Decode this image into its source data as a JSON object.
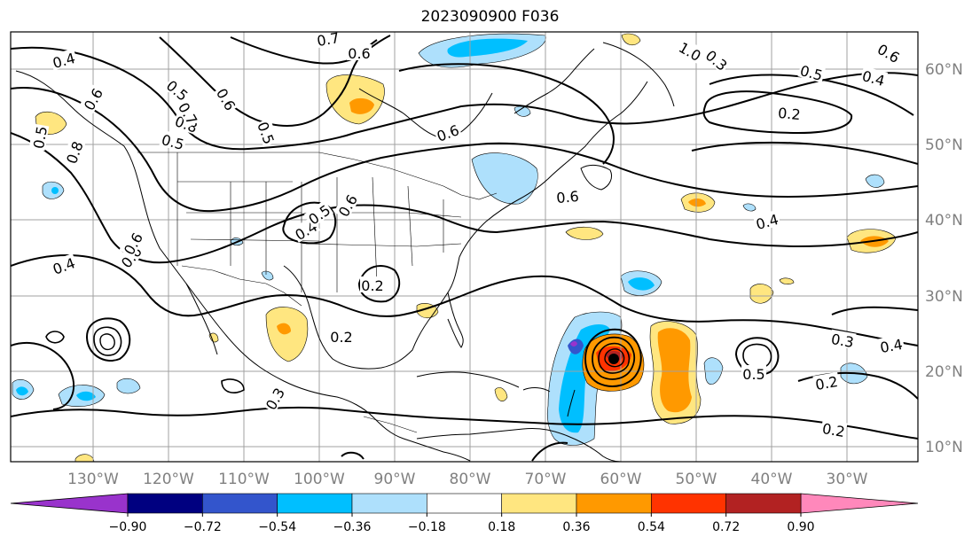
{
  "title": "2023090900 F036",
  "lon_labels": [
    "130°W",
    "120°W",
    "110°W",
    "100°W",
    "90°W",
    "80°W",
    "70°W",
    "60°W",
    "50°W",
    "40°W",
    "30°W"
  ],
  "lat_labels": [
    "60°N",
    "50°N",
    "40°N",
    "30°N",
    "20°N",
    "10°N"
  ],
  "colorbar": {
    "colors": [
      "#9933cc",
      "#000080",
      "#3355cc",
      "#00bfff",
      "#aee0fc",
      "#ffffff",
      "#ffe680",
      "#ff9900",
      "#ff3300",
      "#b22222",
      "#ff88bb"
    ],
    "labels": [
      "−0.90",
      "−0.72",
      "−0.54",
      "−0.36",
      "−0.18",
      "0.18",
      "0.36",
      "0.54",
      "0.72",
      "0.90"
    ]
  },
  "contour_labels": [
    "0.4",
    "0.8",
    "0.6",
    "0.7",
    "0.6",
    "0.5",
    "0.8",
    "0.5",
    "0.6",
    "1.0",
    "0.3",
    "0.2",
    "0.6",
    "0.5",
    "0.7",
    "0.4",
    "0.5",
    "0.6",
    "0.4",
    "0.4",
    "0.5",
    "0.6",
    "0.6",
    "0.4",
    "0.6",
    "0.2",
    "0.2",
    "0.3",
    "0.4",
    "0.2",
    "0.2",
    "0.3",
    "0.5",
    "0.6",
    "0.5"
  ],
  "colors": {
    "contour": "#000000",
    "grid": "#a0a0a0",
    "coast": "#000000",
    "tick_label": "#808080"
  }
}
